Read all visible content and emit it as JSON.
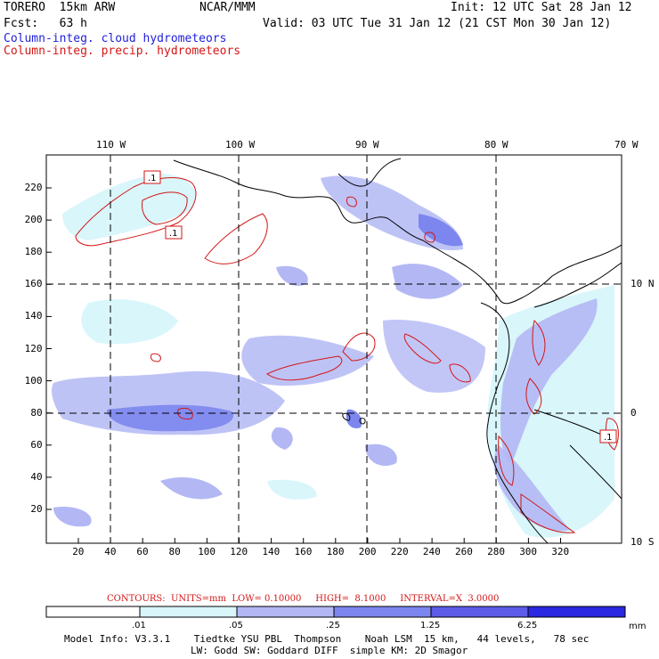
{
  "header": {
    "model": "TORERO  15km ARW",
    "center": "NCAR/MMM",
    "init": "Init: 12 UTC Sat 28 Jan 12",
    "fcst": "Fcst:   63 h",
    "valid": "Valid: 03 UTC Tue 31 Jan 12 (21 CST Mon 30 Jan 12)",
    "field1": "Column-integ. cloud hydrometeors",
    "field2": "Column-integ. precip. hydrometeors"
  },
  "map": {
    "lon_labels": [
      "110 W",
      "100 W",
      "90 W",
      "80 W",
      "70 W"
    ],
    "lat_labels": [
      "10 N",
      "0",
      "10 S"
    ],
    "x_ticks": [
      "20",
      "40",
      "60",
      "80",
      "100",
      "120",
      "140",
      "160",
      "180",
      "200",
      "220",
      "240",
      "260",
      "280",
      "300",
      "320"
    ],
    "y_ticks": [
      "20",
      "40",
      "60",
      "80",
      "100",
      "120",
      "140",
      "160",
      "180",
      "200",
      "220"
    ],
    "box_labels": [
      ".1",
      ".1",
      ".1"
    ]
  },
  "contours": {
    "text": "CONTOURS:  UNITS=mm  LOW= 0.10000     HIGH=  8.1000     INTERVAL=X  3.0000"
  },
  "legend": {
    "values": [
      ".01",
      ".05",
      ".25",
      "1.25",
      "6.25"
    ],
    "units": "mm",
    "colors": [
      "#ffffff",
      "#d9f6fb",
      "#b3b8f4",
      "#7c86ee",
      "#5c5ce8",
      "#2a28e0"
    ]
  },
  "footer": {
    "line1": "Model Info: V3.3.1    Tiedtke YSU PBL  Thompson    Noah LSM  15 km,   44 levels,   78 sec",
    "line2": "LW: Godd SW: Goddard DIFF  simple KM: 2D Smagor"
  }
}
